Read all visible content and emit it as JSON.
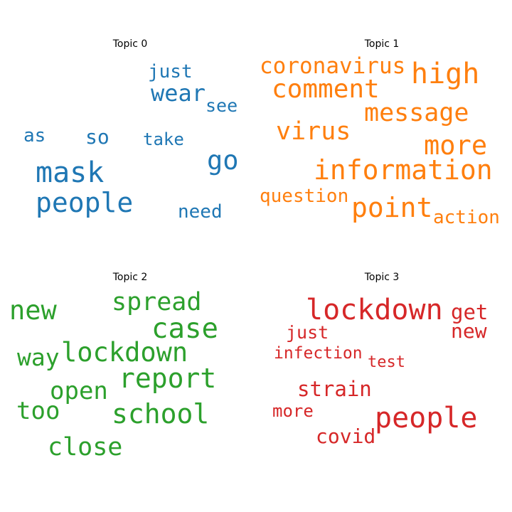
{
  "chart_data": [
    {
      "type": "wordcloud",
      "title": "Topic 0",
      "color": "#1f77b4",
      "words": [
        {
          "text": "mask",
          "weight": 0.0
        },
        {
          "text": "people",
          "weight": 0.0
        },
        {
          "text": "wear",
          "weight": 0.0
        },
        {
          "text": "go",
          "weight": 0.0
        },
        {
          "text": "just",
          "weight": 0.0
        },
        {
          "text": "so",
          "weight": 0.0
        },
        {
          "text": "as",
          "weight": 0.0
        },
        {
          "text": "see",
          "weight": 0.0
        },
        {
          "text": "take",
          "weight": 0.0
        },
        {
          "text": "need",
          "weight": 0.0
        }
      ]
    },
    {
      "type": "wordcloud",
      "title": "Topic 1",
      "color": "#ff7f0e",
      "words": [
        {
          "text": "information",
          "weight": 0.0
        },
        {
          "text": "high",
          "weight": 0.0
        },
        {
          "text": "comment",
          "weight": 0.0
        },
        {
          "text": "more",
          "weight": 0.0
        },
        {
          "text": "point",
          "weight": 0.0
        },
        {
          "text": "message",
          "weight": 0.0
        },
        {
          "text": "virus",
          "weight": 0.0
        },
        {
          "text": "coronavirus",
          "weight": 0.0
        },
        {
          "text": "question",
          "weight": 0.0
        },
        {
          "text": "action",
          "weight": 0.0
        }
      ]
    },
    {
      "type": "wordcloud",
      "title": "Topic 2",
      "color": "#2ca02c",
      "words": [
        {
          "text": "lockdown",
          "weight": 0.0
        },
        {
          "text": "case",
          "weight": 0.0
        },
        {
          "text": "report",
          "weight": 0.0
        },
        {
          "text": "school",
          "weight": 0.0
        },
        {
          "text": "new",
          "weight": 0.0
        },
        {
          "text": "spread",
          "weight": 0.0
        },
        {
          "text": "close",
          "weight": 0.0
        },
        {
          "text": "open",
          "weight": 0.0
        },
        {
          "text": "too",
          "weight": 0.0
        },
        {
          "text": "way",
          "weight": 0.0
        }
      ]
    },
    {
      "type": "wordcloud",
      "title": "Topic 3",
      "color": "#d62728",
      "words": [
        {
          "text": "lockdown",
          "weight": 0.0
        },
        {
          "text": "people",
          "weight": 0.0
        },
        {
          "text": "get",
          "weight": 0.0
        },
        {
          "text": "strain",
          "weight": 0.0
        },
        {
          "text": "new",
          "weight": 0.0
        },
        {
          "text": "covid",
          "weight": 0.0
        },
        {
          "text": "just",
          "weight": 0.0
        },
        {
          "text": "more",
          "weight": 0.0
        },
        {
          "text": "infection",
          "weight": 0.0
        },
        {
          "text": "test",
          "weight": 0.0
        }
      ]
    }
  ]
}
